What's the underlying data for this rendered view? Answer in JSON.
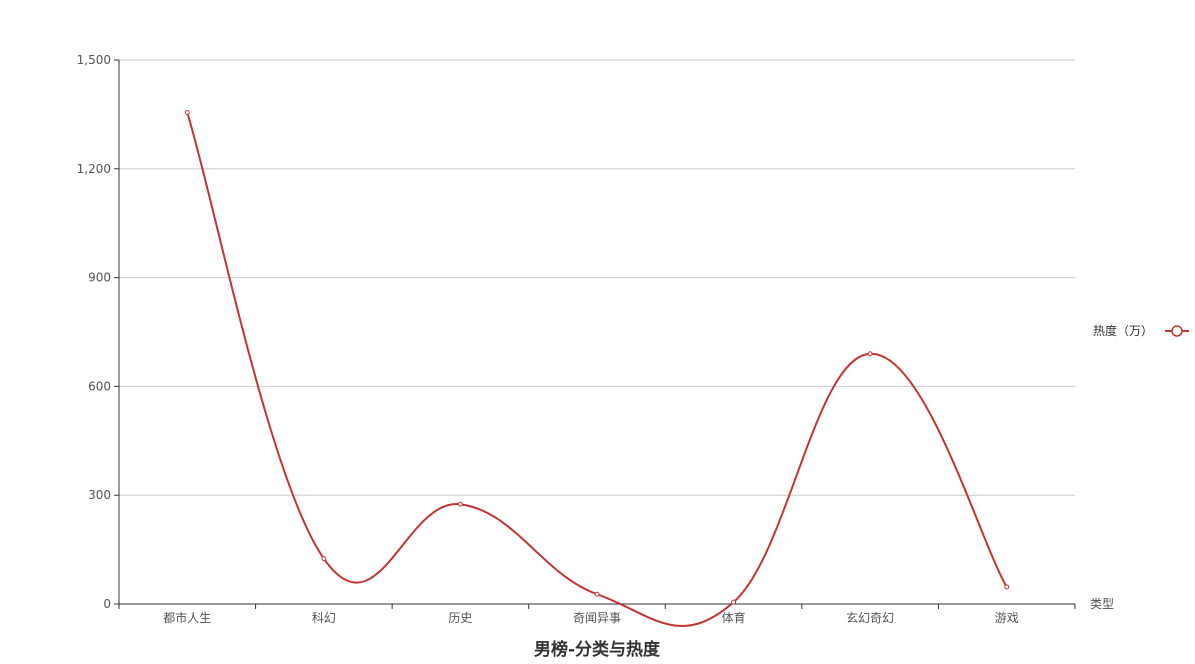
{
  "chart_data": {
    "type": "line",
    "title": "男榜-分类与热度",
    "xlabel": "类型",
    "ylabel": "",
    "ylim": [
      0,
      1500
    ],
    "yticks": [
      0,
      300,
      600,
      900,
      1200,
      1500
    ],
    "categories": [
      "都市人生",
      "科幻",
      "历史",
      "奇闻异事",
      "体育",
      "玄幻奇幻",
      "游戏"
    ],
    "series": [
      {
        "name": "热度（万）",
        "values": [
          1355,
          125,
          275,
          27,
          5,
          690,
          47
        ]
      }
    ],
    "smooth": true,
    "grid": true,
    "legend_position": "right",
    "colors": {
      "series": "#c23531",
      "grid": "#cccccc",
      "axis": "#333333"
    }
  }
}
